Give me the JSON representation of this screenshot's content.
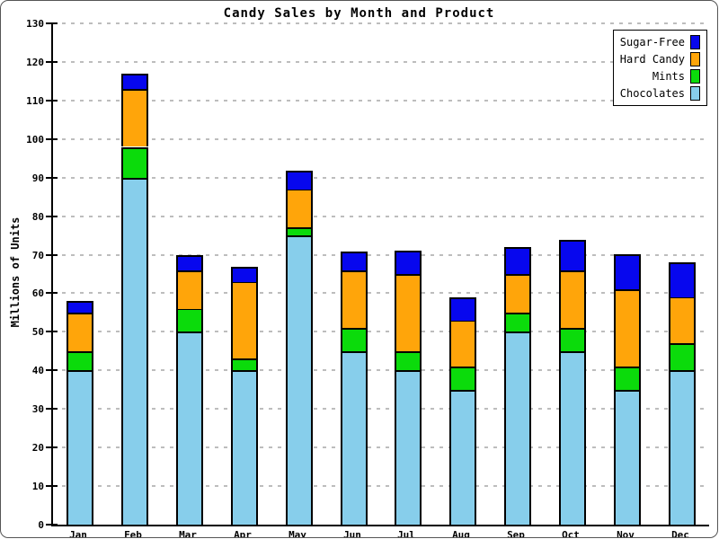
{
  "title": "Candy Sales by Month and Product",
  "ylabel": "Millions of Units",
  "chart_data": {
    "type": "bar",
    "stacked": true,
    "title": "Candy Sales by Month and Product",
    "xlabel": "",
    "ylabel": "Millions of Units",
    "ylim": [
      0,
      130
    ],
    "yticks": [
      0,
      10,
      20,
      30,
      40,
      50,
      60,
      70,
      80,
      90,
      100,
      110,
      120,
      130
    ],
    "grid": true,
    "legend_position": "top-right",
    "categories": [
      "Jan",
      "Feb",
      "Mar",
      "Apr",
      "May",
      "Jun",
      "Jul",
      "Aug",
      "Sep",
      "Oct",
      "Nov",
      "Dec"
    ],
    "series": [
      {
        "name": "Chocolates",
        "color": "#87ceeb",
        "values": [
          40,
          90,
          50,
          40,
          75,
          45,
          40,
          35,
          50,
          45,
          35,
          40
        ]
      },
      {
        "name": "Mints",
        "color": "#0bdb0b",
        "values": [
          5,
          8,
          6,
          3,
          2,
          6,
          5,
          6,
          5,
          6,
          6,
          7
        ]
      },
      {
        "name": "Hard Candy",
        "color": "#ffa50a",
        "values": [
          10,
          15,
          10,
          20,
          10,
          15,
          20,
          12,
          10,
          15,
          20,
          12
        ]
      },
      {
        "name": "Sugar-Free",
        "color": "#0707ee",
        "values": [
          3,
          4,
          4,
          4,
          5,
          5,
          6,
          6,
          7,
          8,
          9,
          9
        ]
      }
    ],
    "totals": [
      58,
      117,
      70,
      67,
      92,
      71,
      71,
      59,
      72,
      74,
      70,
      68
    ],
    "legend": [
      "Sugar-Free",
      "Hard Candy",
      "Mints",
      "Chocolates"
    ]
  },
  "colors": {
    "sugar_free": "#0707ee",
    "hard_candy": "#ffa50a",
    "mints": "#0bdb0b",
    "chocolates": "#87ceeb",
    "gridline": "#bdbdbd",
    "axis": "#000000",
    "frame_border": "#555555",
    "background": "#ffffff"
  }
}
